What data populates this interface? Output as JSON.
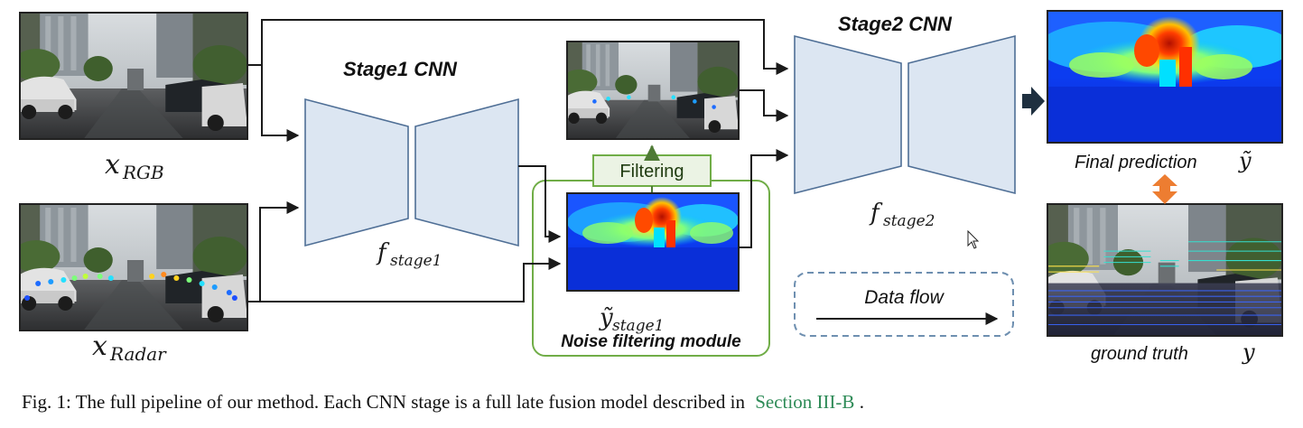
{
  "labels": {
    "x_rgb_main": "x",
    "x_rgb_sub": "RGB",
    "x_radar_main": "x",
    "x_radar_sub": "Radar",
    "stage1_title": "Stage1 CNN",
    "stage2_title": "Stage2 CNN",
    "f_stage1_main": "f",
    "f_stage1_sub": "stage1",
    "f_stage2_main": "f",
    "f_stage2_sub": "stage2",
    "filtering": "Filtering",
    "y_stage1_main": "ỹ",
    "y_stage1_sub": "stage1",
    "noise_module": "Noise filtering module",
    "data_flow": "Data flow",
    "final_prediction": "Final prediction",
    "final_prediction_symbol": "ỹ",
    "ground_truth": "ground truth",
    "ground_truth_symbol": "y"
  },
  "caption": {
    "prefix": "Fig. 1: The full pipeline of our method. Each CNN stage is a full late fusion model described in",
    "link": "Section III-B",
    "suffix": "."
  },
  "colors": {
    "cnn_fill": "#dce6f2",
    "cnn_stroke": "#4f6f96",
    "module_green": "#70ad47",
    "filter_fill": "#ebf3e4",
    "filter_text": "#1f3b10",
    "up_arrow": "#4e7a35",
    "link_green": "#2e8b57",
    "dashed_box": "#6e8fb0",
    "double_arrow": "#ed7d31",
    "fat_arrow": "#1f3040",
    "line": "#1a1a1a"
  }
}
